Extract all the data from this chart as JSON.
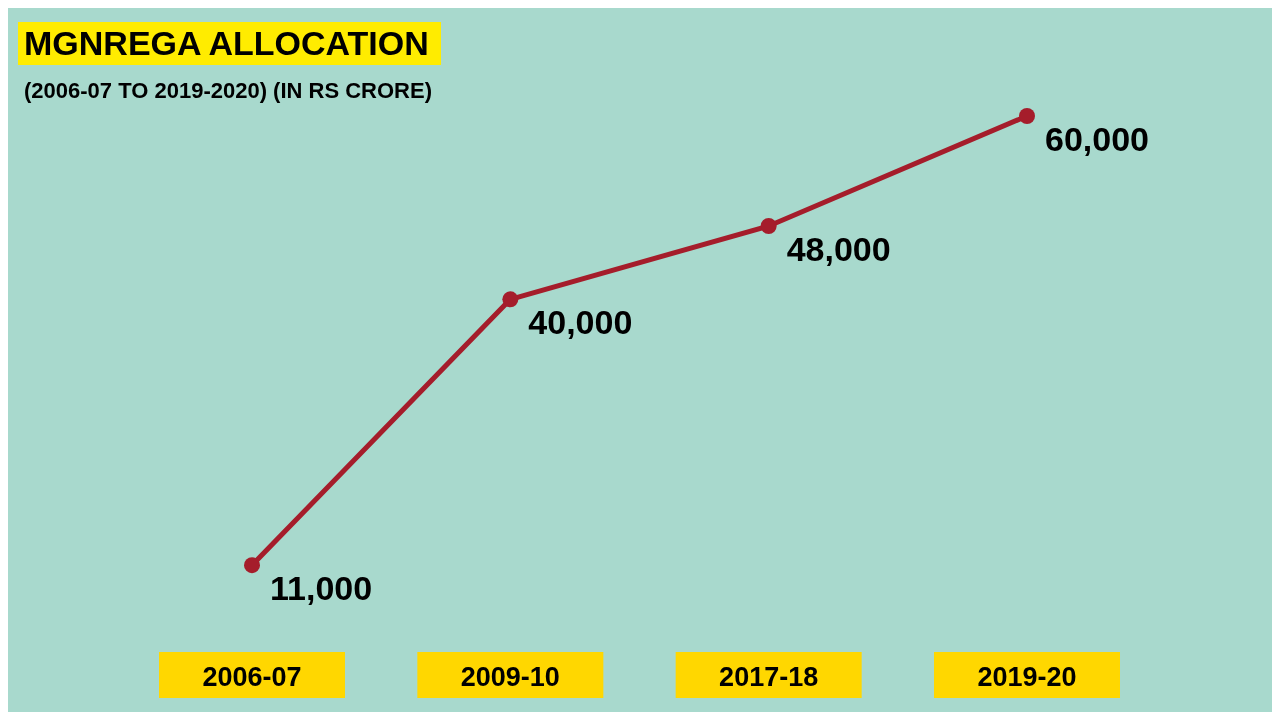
{
  "chart_data": {
    "type": "line",
    "title": "MGNREGA ALLOCATION",
    "subtitle": "(2006-07 TO 2019-2020) (IN RS CRORE)",
    "categories": [
      "2006-07",
      "2009-10",
      "2017-18",
      "2019-20"
    ],
    "series": [
      {
        "color": "#a51d2b",
        "values": [
          11000,
          40000,
          48000,
          60000
        ],
        "value_labels": [
          "11,000",
          "40,000",
          "48,000",
          "60,000"
        ]
      }
    ],
    "marker": "circle",
    "grid": false,
    "legend": false,
    "tick_labels": "x"
  }
}
